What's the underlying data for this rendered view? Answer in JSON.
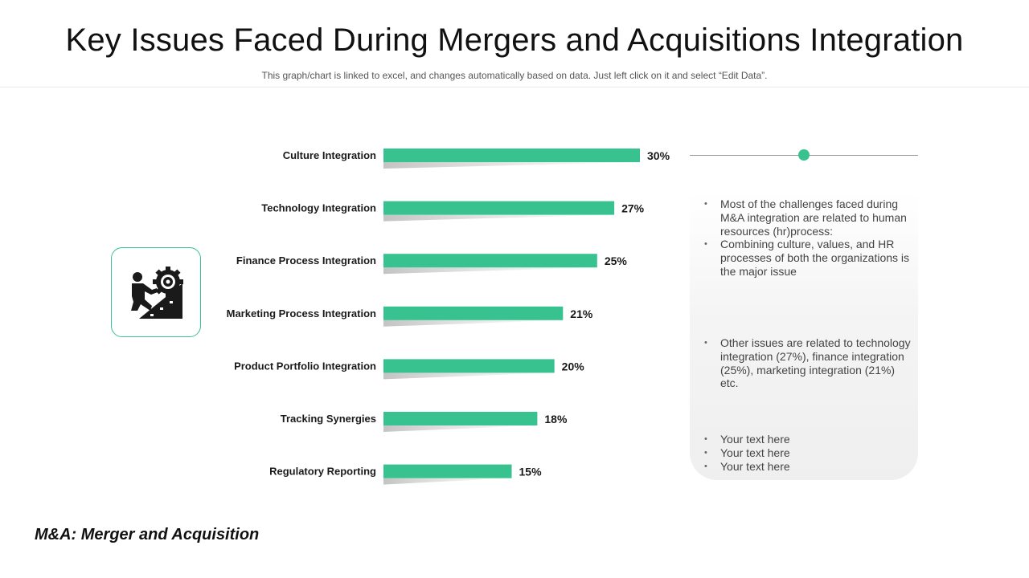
{
  "header": {
    "title": "Key Issues Faced During Mergers and Acquisitions Integration",
    "subtitle": "This graph/chart is linked to excel, and changes automatically based on data. Just left click on it and select “Edit Data”."
  },
  "icon_card": {
    "icon": "person-climbing-gear-icon"
  },
  "chart_data": {
    "type": "bar",
    "orientation": "horizontal",
    "categories": [
      "Culture Integration",
      "Technology Integration",
      "Finance Process Integration",
      "Marketing Process Integration",
      "Product Portfolio Integration",
      "Tracking Synergies",
      "Regulatory Reporting"
    ],
    "values": [
      30,
      27,
      25,
      21,
      20,
      18,
      15
    ],
    "value_labels": [
      "30%",
      "27%",
      "25%",
      "21%",
      "20%",
      "18%",
      "15%"
    ],
    "xlim": [
      0,
      30
    ],
    "grid": false,
    "colors": {
      "bar": "#38c28f"
    }
  },
  "notes": {
    "group_a": [
      "Most of the challenges faced during M&A integration are related to human resources (hr)process:",
      "Combining culture, values, and HR processes of both the organizations is the major issue"
    ],
    "group_b": [
      "Other issues are related to technology integration (27%), finance integration (25%), marketing integration (21%) etc."
    ],
    "group_c": [
      "Your text here",
      "Your text here",
      "Your text here"
    ]
  },
  "footnote": "M&A: Merger and Acquisition",
  "colors": {
    "accent": "#38c28f"
  }
}
